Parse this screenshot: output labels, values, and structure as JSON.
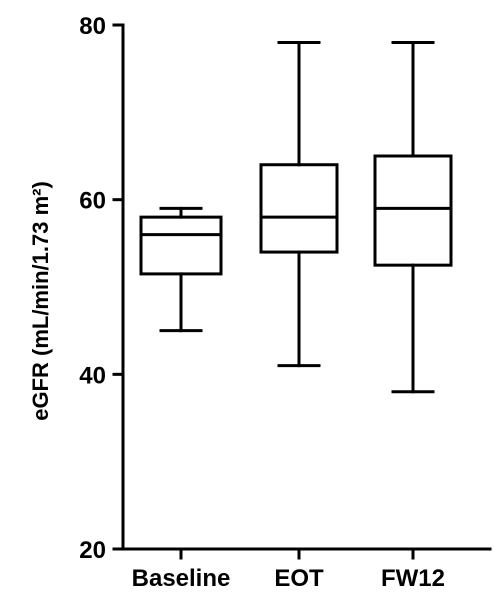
{
  "chart_data": {
    "type": "box",
    "ylabel": "eGFR (mL/min/1.73 m²)",
    "ylim": [
      20,
      80
    ],
    "yticks": [
      20,
      40,
      60,
      80
    ],
    "categories": [
      "Baseline",
      "EOT",
      "FW12"
    ],
    "boxes": [
      {
        "name": "Baseline",
        "min": 45,
        "q1": 51.5,
        "median": 56,
        "q3": 58,
        "max": 59
      },
      {
        "name": "EOT",
        "min": 41,
        "q1": 54,
        "median": 58,
        "q3": 64,
        "max": 78
      },
      {
        "name": "FW12",
        "min": 38,
        "q1": 52.5,
        "median": 59,
        "q3": 65,
        "max": 78
      }
    ],
    "grid": false,
    "legend": "none",
    "color": "#000000"
  }
}
